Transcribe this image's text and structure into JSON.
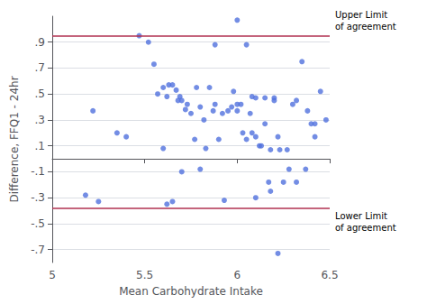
{
  "chart_data": {
    "type": "scatter",
    "x": [
      5.18,
      5.22,
      5.35,
      5.47,
      5.52,
      5.55,
      5.57,
      5.6,
      5.62,
      5.63,
      5.65,
      5.67,
      5.68,
      5.69,
      5.7,
      5.72,
      5.73,
      5.75,
      5.77,
      5.78,
      5.8,
      5.82,
      5.83,
      5.85,
      5.87,
      5.88,
      5.9,
      5.92,
      5.93,
      5.95,
      5.97,
      5.98,
      6.0,
      6.0,
      6.02,
      6.03,
      6.05,
      6.07,
      6.08,
      6.1,
      6.1,
      6.12,
      6.13,
      6.15,
      6.17,
      6.18,
      6.2,
      6.2,
      6.22,
      6.23,
      6.25,
      6.27,
      6.3,
      6.32,
      6.35,
      6.37,
      6.4,
      6.42,
      6.45,
      6.48,
      5.25,
      5.4,
      5.6,
      5.62,
      5.65,
      5.7,
      5.8,
      5.88,
      6.0,
      6.05,
      6.08,
      6.1,
      6.15,
      6.18,
      6.22,
      6.28,
      6.32,
      6.38,
      6.42
    ],
    "values": [
      -0.28,
      0.37,
      0.2,
      0.95,
      0.9,
      0.73,
      0.5,
      0.55,
      0.48,
      0.57,
      0.57,
      0.53,
      0.45,
      0.48,
      0.45,
      0.38,
      0.42,
      0.35,
      0.15,
      0.55,
      0.4,
      0.3,
      0.08,
      0.55,
      0.37,
      0.42,
      0.15,
      0.35,
      -0.32,
      0.37,
      0.4,
      0.52,
      0.42,
      0.37,
      0.42,
      0.2,
      0.15,
      0.35,
      0.48,
      -0.3,
      0.47,
      0.1,
      0.1,
      0.47,
      -0.18,
      0.07,
      0.47,
      0.45,
      0.17,
      0.07,
      -0.18,
      0.07,
      0.42,
      0.45,
      0.75,
      -0.08,
      0.27,
      0.27,
      0.52,
      0.3,
      -0.33,
      0.17,
      0.08,
      -0.35,
      -0.33,
      -0.1,
      -0.08,
      0.88,
      1.07,
      0.88,
      0.2,
      0.17,
      0.27,
      -0.25,
      -0.73,
      -0.08,
      -0.18,
      0.37,
      0.17
    ],
    "xlabel": "Mean Carbohydrate Intake",
    "ylabel": "Difference, FFQ1 - 24hr",
    "xlim": [
      5.0,
      6.5
    ],
    "ylim": [
      -0.8,
      1.1
    ],
    "xticks": [
      5,
      5.5,
      6,
      6.5
    ],
    "yticks": [
      {
        "value": -0.7,
        "label": "-.7"
      },
      {
        "value": -0.5,
        "label": "-.5"
      },
      {
        "value": -0.3,
        "label": "-.3"
      },
      {
        "value": -0.1,
        "label": "-.1"
      },
      {
        "value": 0.1,
        "label": ".1"
      },
      {
        "value": 0.3,
        "label": ".3"
      },
      {
        "value": 0.5,
        "label": ".5"
      },
      {
        "value": 0.7,
        "label": ".7"
      },
      {
        "value": 0.9,
        "label": ".9"
      }
    ],
    "grid": "y",
    "reference_lines": [
      {
        "value": 0.955,
        "label": "Upper Limit\nof agreement",
        "color": "#b03050"
      },
      {
        "value": -0.375,
        "label": "Lower Limit\nof agreement",
        "color": "#b03050"
      }
    ]
  }
}
